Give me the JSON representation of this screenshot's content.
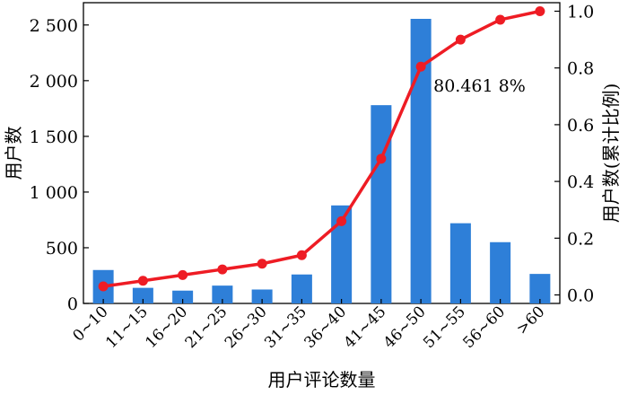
{
  "chart_data": {
    "type": "bar",
    "xlabel": "用户评论数量",
    "ylabel": "用户数",
    "y2label": "用户数(累计比例)",
    "categories": [
      "0~10",
      "11~15",
      "16~20",
      "21~25",
      "26~30",
      "31~35",
      "36~40",
      "41~45",
      "46~50",
      "51~55",
      "56~60",
      ">60"
    ],
    "series": [
      {
        "name": "用户数",
        "type": "bar",
        "axis": "left",
        "color": "#2e7fd8",
        "values": [
          300,
          140,
          115,
          160,
          125,
          260,
          880,
          1780,
          2555,
          720,
          550,
          265
        ]
      },
      {
        "name": "用户数(累计比例)",
        "type": "line",
        "axis": "right",
        "color": "#ee1c24",
        "values": [
          0.03,
          0.05,
          0.07,
          0.09,
          0.11,
          0.14,
          0.26,
          0.48,
          0.804618,
          0.9,
          0.97,
          1.0
        ]
      }
    ],
    "ylim": [
      0,
      2700
    ],
    "yticks": [
      0,
      500,
      1000,
      1500,
      2000,
      2500
    ],
    "ytick_labels": [
      "0",
      "500",
      "1 000",
      "1 500",
      "2 000",
      "2 500"
    ],
    "y2lim": [
      -0.03,
      1.03
    ],
    "y2ticks": [
      0.0,
      0.2,
      0.4,
      0.6,
      0.8,
      1.0
    ],
    "y2tick_labels": [
      "0.0",
      "0.2",
      "0.4",
      "0.6",
      "0.8",
      "1.0"
    ],
    "annotation": {
      "text": "80.461 8%",
      "index": 8
    },
    "grid": false,
    "legend": "none"
  }
}
